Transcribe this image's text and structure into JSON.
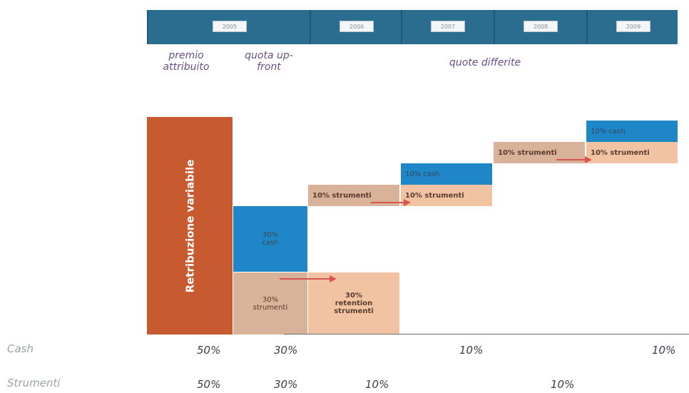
{
  "years": [
    "2005",
    "2006",
    "2007",
    "2008",
    "2009"
  ],
  "phases": {
    "premio": "premio\nattribuito",
    "upfront": "quota up-\nfront",
    "differite": "quote differite"
  },
  "main_bar": {
    "label": "Retribuzione variabile"
  },
  "boxes": {
    "cash_upfront": "30%\ncash",
    "strumenti_upfront": "30%\nstrumenti",
    "retention": "30%\nretention\nstrumenti",
    "strumenti_2006": "10% strumenti",
    "cash_2007": "10% cash",
    "strumenti_2007": "10% strumenti",
    "strumenti_2008": "10% strumenti",
    "cash_2009": "10% cash",
    "strumenti_2009": "10% strumenti"
  },
  "rows": {
    "cash": {
      "label": "Cash",
      "values": [
        "50%",
        "30%",
        "10%",
        "10%"
      ]
    },
    "strumenti": {
      "label": "Strumenti",
      "values": [
        "50%",
        "30%",
        "10%",
        "10%"
      ]
    }
  },
  "colors": {
    "header": "#2a6d8f",
    "main_bar": "#c85a30",
    "cash": "#1f86c7",
    "strumenti": "#f2c3a3",
    "arrow": "#d9534f"
  }
}
